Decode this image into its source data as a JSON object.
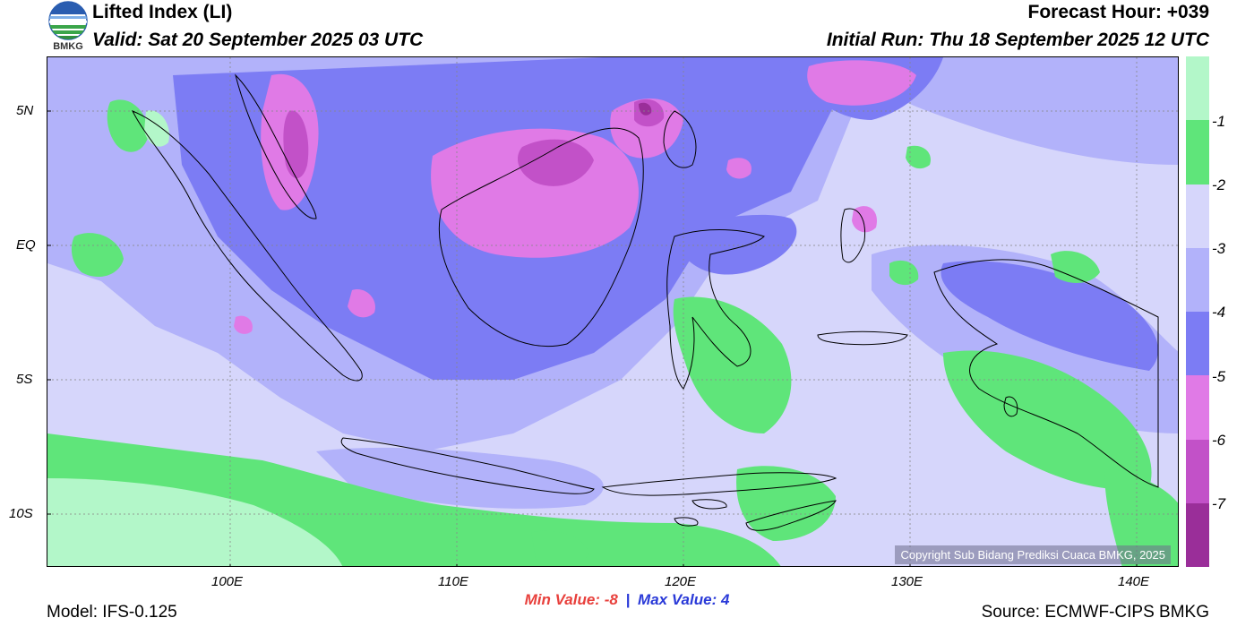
{
  "header": {
    "logo_text": "BMKG",
    "title": "Lifted Index (LI)",
    "valid": "Valid: Sat 20 September 2025 03 UTC",
    "forecast_hour": "Forecast Hour: +039",
    "initial_run": "Initial Run: Thu 18 September 2025 12 UTC"
  },
  "map": {
    "lat_labels": [
      "5N",
      "EQ",
      "5S",
      "10S"
    ],
    "lon_labels": [
      "100E",
      "110E",
      "120E",
      "130E",
      "140E"
    ],
    "copyright": "Copyright Sub Bidang Prediksi Cuaca BMKG, 2025"
  },
  "colorbar": {
    "labels": [
      "-1",
      "-2",
      "-3",
      "-4",
      "-5",
      "-6",
      "-7"
    ],
    "colors": [
      "#b3f7c9",
      "#5fe57a",
      "#d6d6fb",
      "#b2b2fa",
      "#7c7cf4",
      "#e07ae6",
      "#c251c8",
      "#9a2e99"
    ]
  },
  "stats": {
    "min_label": "Min Value:  -8",
    "separator": "|",
    "max_label": "Max Value:   4"
  },
  "footer": {
    "model": "Model: IFS-0.125",
    "source": "Source: ECMWF-CIPS BMKG"
  }
}
